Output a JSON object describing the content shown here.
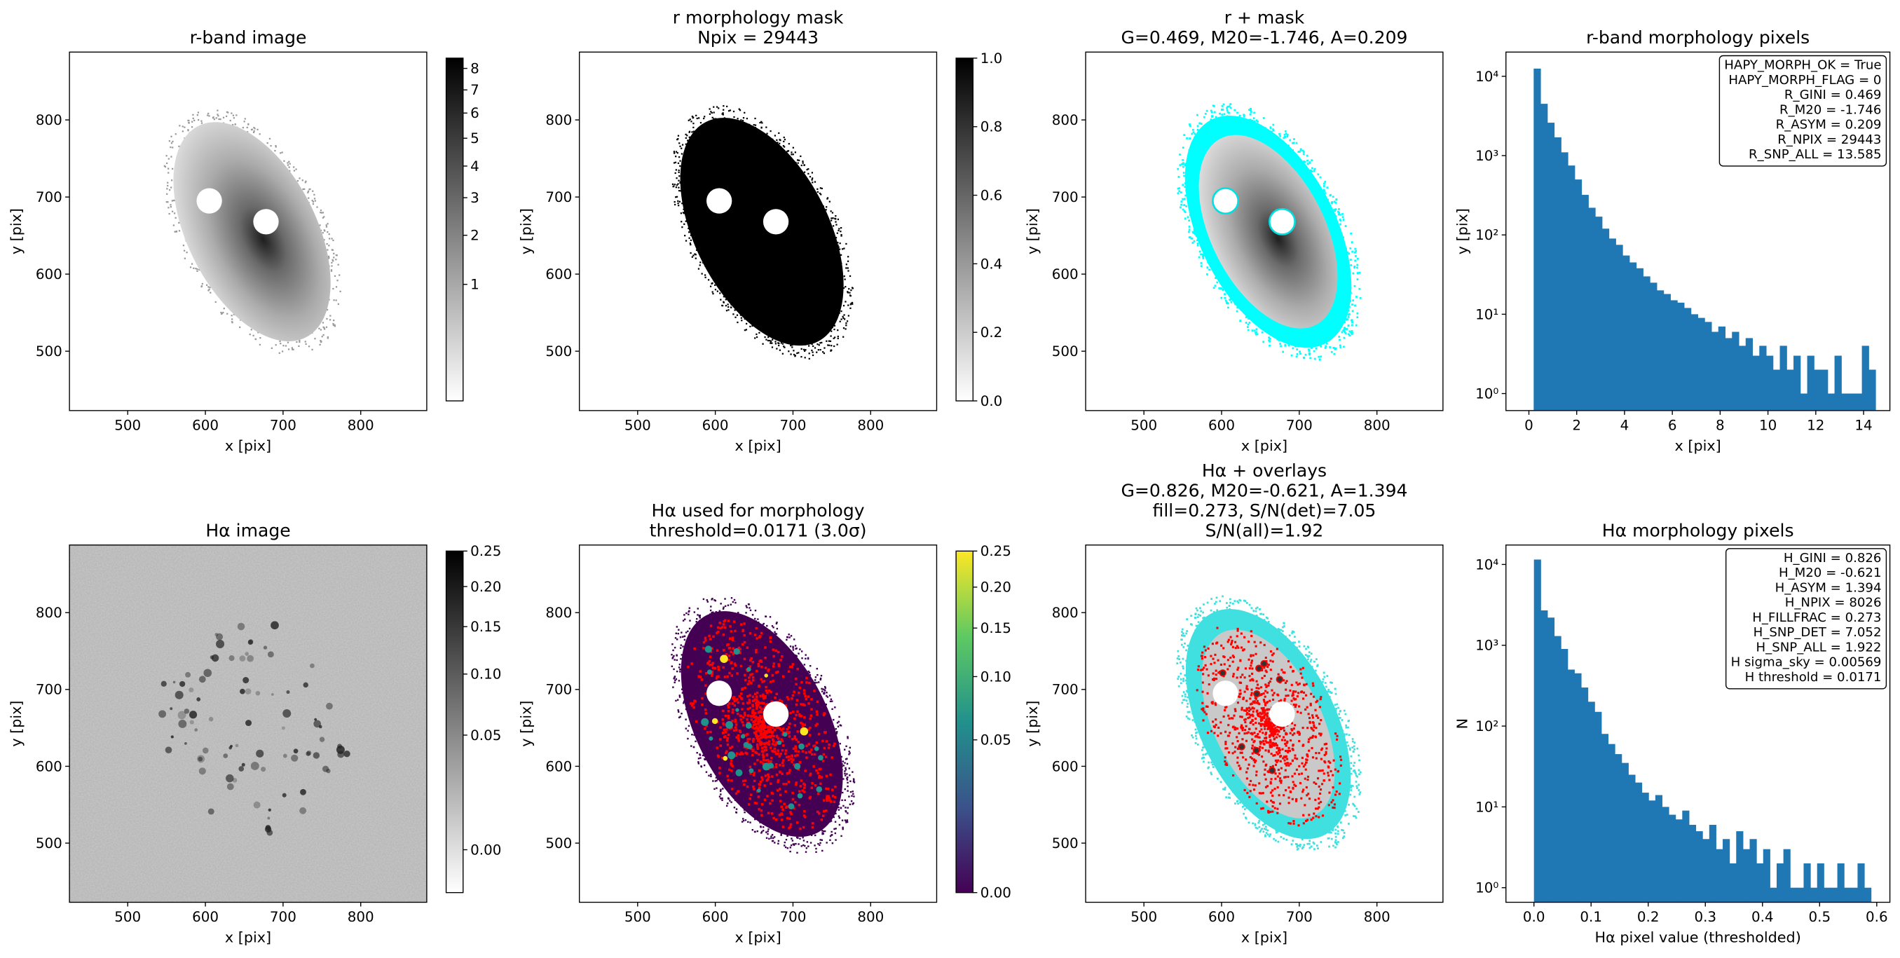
{
  "chart_data": [
    {
      "type": "image",
      "title": [
        "r-band image"
      ],
      "xlabel": "x [pix]",
      "ylabel": "y [pix]",
      "cmap": "gray_r",
      "xlim": [
        425,
        885
      ],
      "ylim": [
        423,
        888
      ],
      "xticks": [
        500,
        600,
        700,
        800
      ],
      "yticks": [
        500,
        600,
        700,
        800
      ],
      "colorbar": {
        "clim": [
          0.02,
          8.5
        ],
        "scale": "sqrt",
        "ticks": [
          1,
          2,
          3,
          4,
          5,
          6,
          7,
          8
        ]
      }
    },
    {
      "type": "image",
      "title": [
        "r morphology mask",
        "Npix = 29443"
      ],
      "xlabel": "x [pix]",
      "ylabel": "y [pix]",
      "cmap": "gray_r",
      "xlim": [
        425,
        885
      ],
      "ylim": [
        423,
        888
      ],
      "xticks": [
        500,
        600,
        700,
        800
      ],
      "yticks": [
        500,
        600,
        700,
        800
      ],
      "colorbar": {
        "clim": [
          0,
          1
        ],
        "scale": "linear",
        "ticks": [
          {
            "value": 0,
            "label": "0.0"
          },
          0.2,
          0.4,
          0.6,
          0.8,
          {
            "value": 1,
            "label": "1.0"
          }
        ]
      }
    },
    {
      "type": "image",
      "title": [
        "r + mask",
        "G=0.469, M20=-1.746, A=0.209"
      ],
      "xlabel": "x [pix]",
      "ylabel": "y [pix]",
      "cmap": "gray_r",
      "xlim": [
        425,
        885
      ],
      "ylim": [
        423,
        888
      ],
      "xticks": [
        500,
        600,
        700,
        800
      ],
      "yticks": [
        500,
        600,
        700,
        800
      ]
    },
    {
      "type": "histogram",
      "title": [
        "r-band morphology pixels"
      ],
      "xlabel": "x [pix]",
      "ylabel": "y [pix]",
      "color": "#1f77b4",
      "log_y": true,
      "bins": [
        0.2,
        0.486,
        0.772,
        1.058,
        1.344,
        1.63,
        1.916,
        2.202,
        2.488,
        2.774,
        3.06,
        3.346,
        3.632,
        3.918,
        4.204,
        4.49,
        4.776,
        5.062,
        5.348,
        5.634,
        5.92,
        6.206,
        6.492,
        6.778,
        7.064,
        7.35,
        7.636,
        7.922,
        8.208,
        8.494,
        8.78,
        9.066,
        9.352,
        9.638,
        9.924,
        10.21,
        10.496,
        10.782,
        11.068,
        11.354,
        11.64,
        11.926,
        12.212,
        12.498,
        12.784,
        13.07,
        13.356,
        13.642,
        13.928,
        14.214,
        14.5
      ],
      "values": [
        12500,
        4500,
        2600,
        1700,
        1100,
        750,
        500,
        320,
        220,
        170,
        120,
        90,
        75,
        55,
        45,
        38,
        30,
        25,
        20,
        18,
        15,
        14,
        12,
        10,
        9,
        8,
        6,
        7,
        5,
        6,
        4,
        5,
        3,
        4,
        3,
        2,
        4,
        2,
        3,
        1,
        3,
        2,
        2,
        1,
        3,
        1,
        1,
        1,
        4,
        2
      ],
      "xlim": [
        -0.96,
        15.1
      ],
      "ylim": [
        0.61,
        20200
      ],
      "xticks": [
        0,
        2,
        4,
        6,
        8,
        10,
        12,
        14
      ],
      "yticks": [
        {
          "value": 1,
          "label": "10⁰"
        },
        {
          "value": 10,
          "label": "10¹"
        },
        {
          "value": 100,
          "label": "10²"
        },
        {
          "value": 1000,
          "label": "10³"
        },
        {
          "value": 10000,
          "label": "10⁴"
        }
      ],
      "annotation": [
        "HAPY_MORPH_OK = True",
        "HAPY_MORPH_FLAG = 0",
        "R_GINI = 0.469",
        "R_M20 = -1.746",
        "R_ASYM = 0.209",
        "R_NPIX = 29443",
        "R_SNP_ALL = 13.585"
      ]
    },
    {
      "type": "image",
      "title": [
        "Hα image"
      ],
      "xlabel": "x [pix]",
      "ylabel": "y [pix]",
      "cmap": "gray_r",
      "xlim": [
        425,
        885
      ],
      "ylim": [
        423,
        888
      ],
      "xticks": [
        500,
        600,
        700,
        800
      ],
      "yticks": [
        500,
        600,
        700,
        800
      ],
      "colorbar": {
        "clim": [
          -0.004,
          0.25
        ],
        "scale": "sqrt",
        "ticks": [
          {
            "value": 0,
            "label": "0.00"
          },
          {
            "value": 0.05,
            "label": "0.05"
          },
          {
            "value": 0.1,
            "label": "0.10"
          },
          {
            "value": 0.15,
            "label": "0.15"
          },
          {
            "value": 0.2,
            "label": "0.20"
          },
          {
            "value": 0.25,
            "label": "0.25"
          }
        ]
      }
    },
    {
      "type": "image",
      "title": [
        "Hα used for morphology",
        "threshold=0.0171 (3.0σ)"
      ],
      "xlabel": "x [pix]",
      "ylabel": "y [pix]",
      "cmap": "viridis",
      "xlim": [
        425,
        885
      ],
      "ylim": [
        423,
        888
      ],
      "xticks": [
        500,
        600,
        700,
        800
      ],
      "yticks": [
        500,
        600,
        700,
        800
      ],
      "colorbar": {
        "clim": [
          0,
          0.25
        ],
        "scale": "sqrt",
        "ticks": [
          {
            "value": 0,
            "label": "0.00"
          },
          {
            "value": 0.05,
            "label": "0.05"
          },
          {
            "value": 0.1,
            "label": "0.10"
          },
          {
            "value": 0.15,
            "label": "0.15"
          },
          {
            "value": 0.2,
            "label": "0.20"
          },
          {
            "value": 0.25,
            "label": "0.25"
          }
        ]
      }
    },
    {
      "type": "image",
      "title": [
        "Hα + overlays",
        "G=0.826, M20=-0.621, A=1.394",
        "fill=0.273, S/N(det)=7.05",
        "S/N(all)=1.92"
      ],
      "xlabel": "x [pix]",
      "ylabel": "y [pix]",
      "cmap": "gray_r",
      "xlim": [
        425,
        885
      ],
      "ylim": [
        423,
        888
      ],
      "xticks": [
        500,
        600,
        700,
        800
      ],
      "yticks": [
        500,
        600,
        700,
        800
      ]
    },
    {
      "type": "histogram",
      "title": [
        "Hα morphology pixels"
      ],
      "xlabel": "Hα pixel value (thresholded)",
      "ylabel": "N",
      "color": "#1f77b4",
      "log_y": true,
      "bins": [
        0,
        0.0118,
        0.0236,
        0.0354,
        0.0472,
        0.059,
        0.0708,
        0.0826,
        0.0944,
        0.1062,
        0.118,
        0.1298,
        0.1416,
        0.1534,
        0.1652,
        0.177,
        0.1888,
        0.2006,
        0.2124,
        0.2242,
        0.236,
        0.2478,
        0.2596,
        0.2714,
        0.2832,
        0.295,
        0.3068,
        0.3186,
        0.3304,
        0.3422,
        0.354,
        0.3658,
        0.3776,
        0.3894,
        0.4012,
        0.413,
        0.4248,
        0.4366,
        0.4484,
        0.4602,
        0.472,
        0.4838,
        0.4956,
        0.5074,
        0.5192,
        0.531,
        0.5428,
        0.5546,
        0.5664,
        0.5782,
        0.59
      ],
      "values": [
        11500,
        2700,
        2200,
        1300,
        900,
        500,
        450,
        300,
        200,
        150,
        80,
        60,
        45,
        35,
        25,
        20,
        15,
        12,
        14,
        10,
        8,
        7,
        9,
        6,
        5,
        4,
        6,
        3,
        4,
        2,
        5,
        3,
        4,
        2,
        3,
        1,
        2,
        3,
        1,
        1,
        2,
        1,
        2,
        1,
        1,
        2,
        1,
        1,
        2,
        1
      ],
      "xlim": [
        -0.049,
        0.623
      ],
      "ylim": [
        0.66,
        17400
      ],
      "xticks": [
        {
          "value": 0,
          "label": "0.0"
        },
        0.1,
        0.2,
        0.3,
        0.4,
        0.5,
        0.6
      ],
      "yticks": [
        {
          "value": 1,
          "label": "10⁰"
        },
        {
          "value": 10,
          "label": "10¹"
        },
        {
          "value": 100,
          "label": "10²"
        },
        {
          "value": 1000,
          "label": "10³"
        },
        {
          "value": 10000,
          "label": "10⁴"
        }
      ],
      "annotation": [
        "H_GINI = 0.826",
        "H_M20 = -0.621",
        "H_ASYM = 1.394",
        "H_NPIX = 8026",
        "H_FILLFRAC = 0.273",
        "H_SNP_DET = 7.052",
        "H_SNP_ALL = 1.922",
        "H sigma_sky = 0.00569",
        "H threshold = 0.0171"
      ]
    }
  ]
}
